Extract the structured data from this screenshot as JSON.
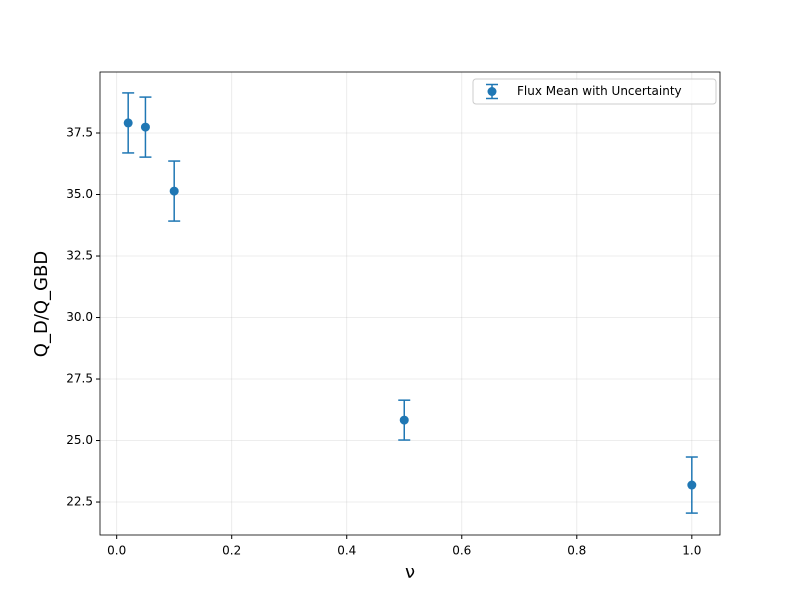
{
  "chart_data": {
    "type": "errorbar",
    "x_label": "ν",
    "y_label": "Q_D/Q_GBD",
    "x": [
      0.02,
      0.05,
      0.1,
      0.5,
      1.0
    ],
    "series": [
      {
        "name": "Flux Mean with Uncertainty",
        "color": "#1f77b4",
        "values": [
          37.91,
          37.74,
          35.14,
          25.83,
          23.19
        ],
        "errors": [
          1.22,
          1.22,
          1.22,
          0.81,
          1.14
        ]
      }
    ],
    "xlim": [
      -0.029,
      1.049
    ],
    "xticks": [
      {
        "value": 0,
        "label": "0.0"
      },
      0.2,
      0.4,
      0.6,
      0.8,
      {
        "value": 1,
        "label": "1.0"
      }
    ],
    "ylim": [
      21.16,
      39.98
    ],
    "yticks": [
      22.5,
      {
        "value": 25,
        "label": "25.0"
      },
      27.5,
      {
        "value": 30,
        "label": "30.0"
      },
      32.5,
      {
        "value": 35,
        "label": "35.0"
      },
      37.5
    ],
    "grid": true,
    "legend": "upper right"
  }
}
